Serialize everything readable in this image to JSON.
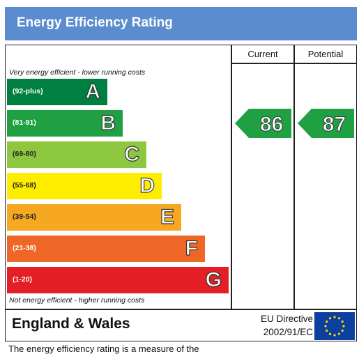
{
  "header": {
    "title": "Energy Efficiency Rating"
  },
  "columns": {
    "current": "Current",
    "potential": "Potential"
  },
  "notes": {
    "top": "Very energy efficient - lower running costs",
    "bottom": "Not energy efficient - higher running costs"
  },
  "footer": {
    "region": "England & Wales",
    "directive_line1": "EU Directive",
    "directive_line2": "2002/91/EC",
    "truncated_text": "The energy efficiency rating is a measure of the"
  },
  "colors": {
    "header_bg": "#5b8ccf",
    "A": "#008040",
    "B": "#1fa043",
    "C": "#8dc63f",
    "D": "#ffed00",
    "E": "#f7a823",
    "F": "#ef6726",
    "G": "#e31e24",
    "flag": "#0b3fa0",
    "stars": "#ffdd00"
  },
  "chart_data": {
    "type": "bar",
    "bands": [
      {
        "letter": "A",
        "range": "(92-plus)"
      },
      {
        "letter": "B",
        "range": "(81-91)"
      },
      {
        "letter": "C",
        "range": "(69-80)"
      },
      {
        "letter": "D",
        "range": "(55-68)"
      },
      {
        "letter": "E",
        "range": "(39-54)"
      },
      {
        "letter": "F",
        "range": "(21-38)"
      },
      {
        "letter": "G",
        "range": "(1-20)"
      }
    ],
    "current": {
      "value": 86,
      "band": "B"
    },
    "potential": {
      "value": 87,
      "band": "B"
    }
  }
}
